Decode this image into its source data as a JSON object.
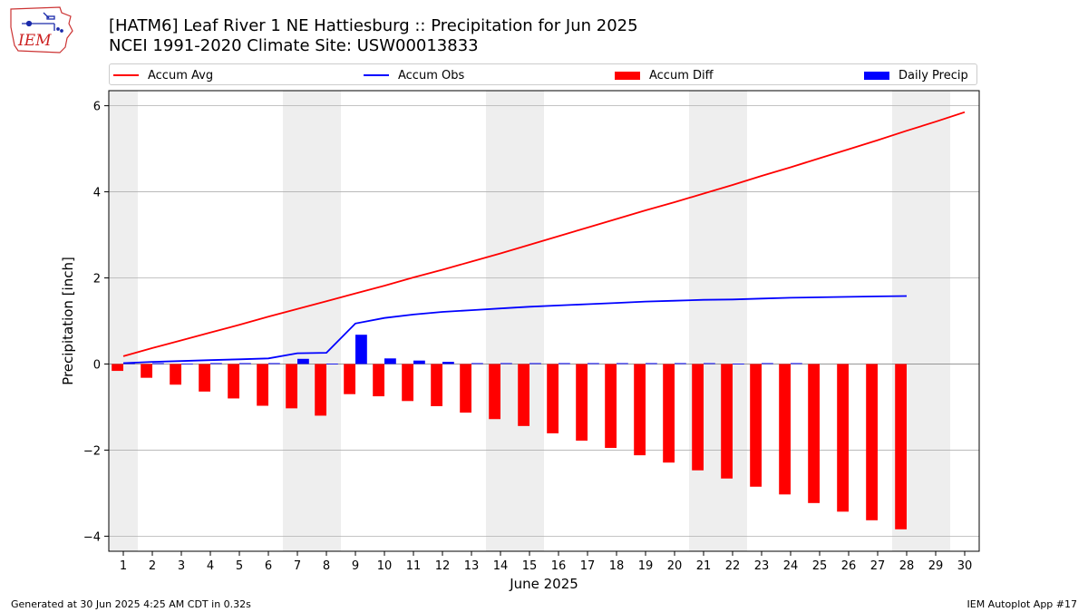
{
  "header": {
    "title_line1": "[HATM6] Leaf River 1 NE Hattiesburg :: Precipitation for Jun 2025",
    "title_line2": "NCEI 1991-2020 Climate Site: USW00013833"
  },
  "logo": {
    "text": "IEM"
  },
  "footer": {
    "left": "Generated at 30 Jun 2025 4:25 AM CDT in 0.32s",
    "right": "IEM Autoplot App #17"
  },
  "colors": {
    "accum_avg": "#ff0000",
    "accum_obs": "#0000ff",
    "accum_diff": "#ff0000",
    "daily_precip": "#0000ff",
    "weekend_shade": "#eeeeee",
    "grid": "#b0b0b0"
  },
  "chart_data": {
    "type": "bar",
    "xlabel": "June 2025",
    "ylabel": "Precipitation [inch]",
    "xlim": [
      0.5,
      30.5
    ],
    "ylim": [
      -4.35,
      6.35
    ],
    "yticks": [
      -4,
      -2,
      0,
      2,
      4,
      6
    ],
    "ytick_labels": [
      "−4",
      "−2",
      "0",
      "2",
      "4",
      "6"
    ],
    "x": [
      1,
      2,
      3,
      4,
      5,
      6,
      7,
      8,
      9,
      10,
      11,
      12,
      13,
      14,
      15,
      16,
      17,
      18,
      19,
      20,
      21,
      22,
      23,
      24,
      25,
      26,
      27,
      28,
      29,
      30
    ],
    "x_tick_labels": [
      "1",
      "2",
      "3",
      "4",
      "5",
      "6",
      "7",
      "8",
      "9",
      "10",
      "11",
      "12",
      "13",
      "14",
      "15",
      "16",
      "17",
      "18",
      "19",
      "20",
      "21",
      "22",
      "23",
      "24",
      "25",
      "26",
      "27",
      "28",
      "29",
      "30"
    ],
    "grid": "horizontal",
    "legend_position": "top",
    "weekend_days": [
      1,
      7,
      8,
      14,
      15,
      21,
      22,
      28,
      29
    ],
    "series": [
      {
        "name": "Accum Avg",
        "type": "line",
        "values": [
          0.18,
          0.37,
          0.55,
          0.73,
          0.91,
          1.1,
          1.28,
          1.46,
          1.64,
          1.82,
          2.01,
          2.19,
          2.38,
          2.57,
          2.77,
          2.97,
          3.17,
          3.37,
          3.57,
          3.76,
          3.96,
          4.16,
          4.37,
          4.57,
          4.78,
          4.99,
          5.2,
          5.42,
          5.63,
          5.85
        ]
      },
      {
        "name": "Accum Obs",
        "type": "line",
        "values": [
          0.02,
          0.05,
          0.07,
          0.09,
          0.11,
          0.13,
          0.25,
          0.26,
          0.94,
          1.07,
          1.15,
          1.21,
          1.25,
          1.29,
          1.33,
          1.36,
          1.39,
          1.42,
          1.45,
          1.47,
          1.49,
          1.5,
          1.52,
          1.54,
          1.55,
          1.56,
          1.57,
          1.58,
          null,
          null
        ]
      },
      {
        "name": "Accum Diff",
        "type": "bar",
        "values": [
          -0.16,
          -0.32,
          -0.48,
          -0.64,
          -0.8,
          -0.97,
          -1.03,
          -1.2,
          -0.7,
          -0.75,
          -0.86,
          -0.98,
          -1.13,
          -1.28,
          -1.44,
          -1.61,
          -1.78,
          -1.95,
          -2.12,
          -2.29,
          -2.47,
          -2.66,
          -2.85,
          -3.03,
          -3.23,
          -3.43,
          -3.63,
          -3.84,
          null,
          null
        ]
      },
      {
        "name": "Daily Precip",
        "type": "bar",
        "values": [
          0.02,
          0.02,
          0.01,
          0.02,
          0.02,
          0.02,
          0.12,
          0.01,
          0.68,
          0.13,
          0.08,
          0.05,
          0.02,
          0.02,
          0.02,
          0.02,
          0.02,
          0.02,
          0.02,
          0.02,
          0.02,
          0.01,
          0.02,
          0.02,
          0,
          0,
          0,
          0,
          null,
          null
        ]
      }
    ]
  }
}
